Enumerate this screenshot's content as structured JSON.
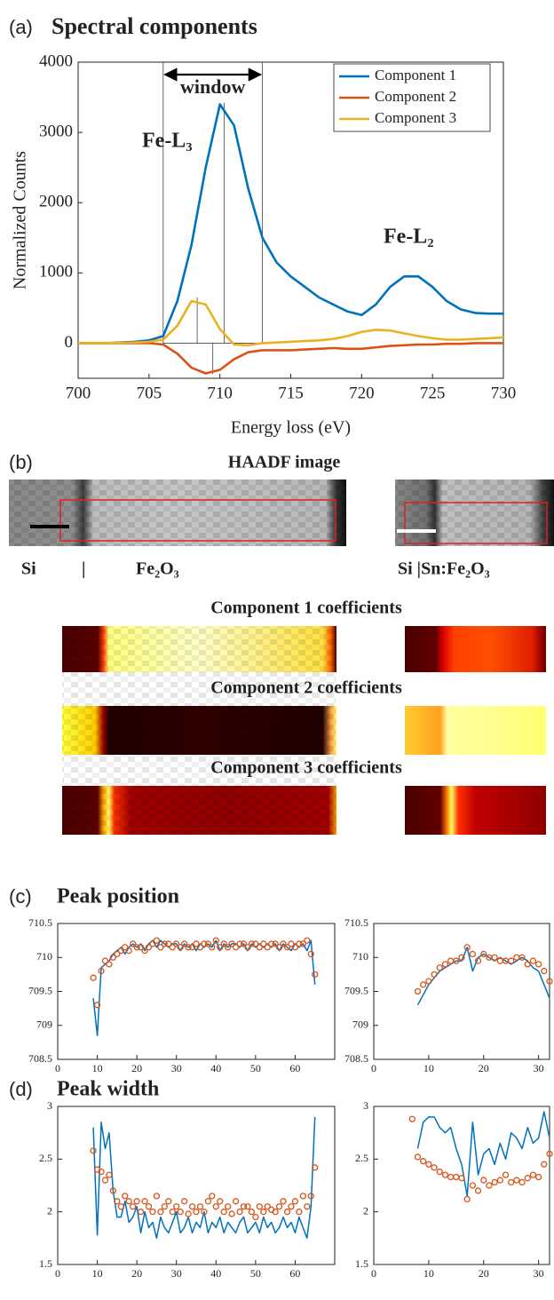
{
  "chart_data": [
    {
      "type": "line",
      "panel_label": "(a)",
      "title": "Spectral components",
      "xlabel": "Energy loss (eV)",
      "ylabel": "Normalized Counts",
      "x": [
        700,
        701,
        702,
        703,
        704,
        705,
        706,
        707,
        708,
        709,
        710,
        711,
        712,
        713,
        714,
        715,
        716,
        717,
        718,
        719,
        720,
        721,
        722,
        723,
        724,
        725,
        726,
        727,
        728,
        729,
        730
      ],
      "series": [
        {
          "name": "Component 1",
          "color": "#0072bd",
          "values": [
            0,
            0,
            0,
            10,
            20,
            40,
            100,
            600,
            1400,
            2500,
            3400,
            3100,
            2200,
            1500,
            1150,
            950,
            800,
            650,
            550,
            450,
            400,
            550,
            800,
            950,
            950,
            800,
            600,
            480,
            430,
            420,
            420
          ]
        },
        {
          "name": "Component 2",
          "color": "#d95319",
          "values": [
            0,
            0,
            0,
            0,
            0,
            0,
            -20,
            -150,
            -350,
            -430,
            -380,
            -230,
            -130,
            -100,
            -100,
            -100,
            -90,
            -80,
            -70,
            -80,
            -80,
            -60,
            -40,
            -30,
            -20,
            -20,
            -10,
            -10,
            0,
            0,
            0
          ]
        },
        {
          "name": "Component 3",
          "color": "#edb120",
          "values": [
            0,
            0,
            0,
            5,
            10,
            20,
            50,
            250,
            600,
            550,
            200,
            -20,
            -30,
            0,
            10,
            20,
            30,
            40,
            60,
            100,
            160,
            190,
            180,
            140,
            100,
            70,
            50,
            50,
            60,
            70,
            80
          ]
        }
      ],
      "xlim": [
        700,
        730
      ],
      "ylim": [
        -500,
        4000
      ],
      "xticks": [
        700,
        705,
        710,
        715,
        720,
        725,
        730
      ],
      "yticks": [
        0,
        1000,
        2000,
        3000,
        4000
      ],
      "legend": "upper right",
      "window": {
        "label": "window",
        "range": [
          706,
          713
        ]
      },
      "peak_markers": [
        {
          "x": 710.3,
          "y": 3420
        },
        {
          "x": 708.4,
          "y": 650
        },
        {
          "x": 709.5,
          "y": -440
        }
      ],
      "annotations": [
        "Fe-L₃",
        "Fe-L₂"
      ]
    },
    {
      "type": "line",
      "panel_label": "(c)",
      "title": "Peak position",
      "x": [
        9,
        10,
        11,
        12,
        13,
        14,
        15,
        16,
        17,
        18,
        19,
        20,
        21,
        22,
        23,
        24,
        25,
        26,
        27,
        28,
        29,
        30,
        31,
        32,
        33,
        34,
        35,
        36,
        37,
        38,
        39,
        40,
        41,
        42,
        43,
        44,
        45,
        46,
        47,
        48,
        49,
        50,
        51,
        52,
        53,
        54,
        55,
        56,
        57,
        58,
        59,
        60,
        61,
        62,
        63,
        64,
        65
      ],
      "series": [
        {
          "color": "#0072bd",
          "marker": "none",
          "values": [
            709.4,
            708.85,
            709.85,
            709.9,
            709.95,
            710.05,
            710.1,
            710.15,
            710.05,
            710.15,
            710.2,
            710.15,
            710.2,
            710.1,
            710.2,
            710.25,
            710.15,
            710.25,
            710.2,
            710.15,
            710.2,
            710.2,
            710.1,
            710.2,
            710.15,
            710.2,
            710.1,
            710.2,
            710.15,
            710.2,
            710.15,
            710.25,
            710.1,
            710.2,
            710.15,
            710.2,
            710.2,
            710.15,
            710.2,
            710.1,
            710.2,
            710.15,
            710.2,
            710.15,
            710.2,
            710.15,
            710.2,
            710.1,
            710.2,
            710.15,
            710.1,
            710.2,
            710.15,
            710.2,
            710.1,
            710.25,
            709.6
          ]
        },
        {
          "color": "#d95319",
          "marker": "circle",
          "values": [
            709.7,
            709.3,
            709.8,
            709.95,
            709.9,
            710.0,
            710.05,
            710.1,
            710.15,
            710.1,
            710.2,
            710.15,
            710.15,
            710.1,
            710.15,
            710.2,
            710.25,
            710.15,
            710.2,
            710.2,
            710.15,
            710.2,
            710.15,
            710.2,
            710.15,
            710.15,
            710.2,
            710.15,
            710.2,
            710.2,
            710.15,
            710.25,
            710.15,
            710.2,
            710.15,
            710.2,
            710.15,
            710.2,
            710.2,
            710.15,
            710.2,
            710.2,
            710.15,
            710.2,
            710.15,
            710.2,
            710.2,
            710.15,
            710.2,
            710.15,
            710.2,
            710.15,
            710.2,
            710.2,
            710.25,
            710.05,
            709.75
          ]
        }
      ],
      "xlim": [
        0,
        70
      ],
      "ylim": [
        708.5,
        710.5
      ],
      "xticks": [
        0,
        10,
        20,
        30,
        40,
        50,
        60
      ],
      "yticks": [
        708.5,
        709,
        709.5,
        710,
        710.5
      ]
    },
    {
      "type": "line",
      "x": [
        8,
        9,
        10,
        11,
        12,
        13,
        14,
        15,
        16,
        17,
        18,
        19,
        20,
        21,
        22,
        23,
        24,
        25,
        26,
        27,
        28,
        29,
        30,
        31,
        32
      ],
      "series": [
        {
          "color": "#0072bd",
          "marker": "none",
          "values": [
            709.3,
            709.45,
            709.6,
            709.7,
            709.8,
            709.85,
            709.9,
            709.95,
            709.95,
            710.15,
            709.8,
            710.0,
            710.05,
            710.0,
            709.95,
            710.0,
            709.95,
            709.9,
            709.95,
            710.0,
            709.95,
            709.85,
            709.8,
            709.6,
            709.4
          ]
        },
        {
          "color": "#d95319",
          "marker": "circle",
          "values": [
            709.5,
            709.6,
            709.65,
            709.75,
            709.85,
            709.9,
            709.95,
            709.95,
            710.0,
            710.15,
            710.05,
            709.95,
            710.05,
            710.0,
            710.0,
            709.95,
            709.95,
            709.95,
            710.0,
            710.0,
            709.9,
            709.95,
            709.9,
            709.8,
            709.65
          ]
        }
      ],
      "xlim": [
        0,
        32
      ],
      "ylim": [
        708.5,
        710.5
      ],
      "xticks": [
        0,
        10,
        20,
        30
      ],
      "yticks": [
        708.5,
        709,
        709.5,
        710,
        710.5
      ]
    },
    {
      "type": "line",
      "panel_label": "(d)",
      "title": "Peak width",
      "x": [
        9,
        10,
        11,
        12,
        13,
        14,
        15,
        16,
        17,
        18,
        19,
        20,
        21,
        22,
        23,
        24,
        25,
        26,
        27,
        28,
        29,
        30,
        31,
        32,
        33,
        34,
        35,
        36,
        37,
        38,
        39,
        40,
        41,
        42,
        43,
        44,
        45,
        46,
        47,
        48,
        49,
        50,
        51,
        52,
        53,
        54,
        55,
        56,
        57,
        58,
        59,
        60,
        61,
        62,
        63,
        64,
        65
      ],
      "series": [
        {
          "color": "#0072bd",
          "marker": "none",
          "values": [
            2.8,
            1.78,
            2.85,
            2.6,
            2.75,
            2.2,
            1.95,
            1.95,
            2.1,
            1.9,
            1.95,
            2.05,
            1.8,
            2.0,
            1.85,
            1.9,
            1.75,
            1.95,
            1.85,
            1.8,
            1.9,
            2.0,
            1.8,
            1.85,
            1.95,
            1.8,
            1.9,
            1.85,
            2.0,
            1.8,
            1.9,
            1.85,
            1.95,
            1.8,
            1.9,
            1.85,
            1.8,
            1.9,
            1.95,
            1.8,
            1.85,
            1.9,
            1.8,
            1.95,
            1.85,
            1.9,
            1.8,
            1.85,
            1.95,
            1.85,
            1.9,
            1.8,
            1.95,
            1.85,
            1.75,
            2.05,
            2.9
          ]
        },
        {
          "color": "#d95319",
          "marker": "circle",
          "values": [
            2.58,
            2.4,
            2.38,
            2.3,
            2.35,
            2.2,
            2.1,
            2.05,
            2.15,
            2.1,
            2.05,
            2.1,
            2.0,
            2.1,
            2.05,
            2.0,
            2.15,
            2.0,
            2.05,
            2.1,
            2.0,
            2.05,
            2.0,
            2.1,
            1.98,
            2.05,
            2.0,
            2.05,
            2.0,
            2.1,
            2.15,
            2.05,
            2.1,
            2.0,
            2.05,
            1.98,
            2.1,
            2.0,
            2.05,
            2.05,
            2.0,
            1.95,
            2.05,
            2.0,
            2.05,
            2.02,
            2.0,
            2.05,
            2.1,
            2.0,
            2.05,
            2.1,
            2.0,
            2.15,
            2.05,
            2.15,
            2.42
          ]
        }
      ],
      "xlim": [
        0,
        70
      ],
      "ylim": [
        1.5,
        3
      ],
      "xticks": [
        0,
        10,
        20,
        30,
        40,
        50,
        60
      ],
      "yticks": [
        1.5,
        2,
        2.5,
        3
      ]
    },
    {
      "type": "line",
      "x": [
        7,
        8,
        9,
        10,
        11,
        12,
        13,
        14,
        15,
        16,
        17,
        18,
        19,
        20,
        21,
        22,
        23,
        24,
        25,
        26,
        27,
        28,
        29,
        30,
        31,
        32
      ],
      "series": [
        {
          "color": "#0072bd",
          "marker": "none",
          "values": [
            null,
            2.6,
            2.85,
            2.9,
            2.9,
            2.8,
            2.75,
            2.8,
            2.6,
            2.45,
            2.15,
            2.85,
            2.35,
            2.55,
            2.6,
            2.45,
            2.65,
            2.5,
            2.75,
            2.7,
            2.6,
            2.8,
            2.65,
            2.7,
            2.95,
            2.7
          ]
        },
        {
          "color": "#d95319",
          "marker": "circle",
          "values": [
            2.88,
            2.52,
            2.48,
            2.45,
            2.42,
            2.38,
            2.35,
            2.33,
            2.33,
            2.32,
            2.12,
            2.25,
            2.2,
            2.3,
            2.25,
            2.28,
            2.3,
            2.35,
            2.28,
            2.3,
            2.28,
            2.32,
            2.35,
            2.33,
            2.45,
            2.55
          ]
        }
      ],
      "xlim": [
        0,
        32
      ],
      "ylim": [
        1.5,
        3
      ],
      "xticks": [
        0,
        10,
        20,
        30
      ],
      "yticks": [
        1.5,
        2,
        2.5,
        3
      ]
    }
  ],
  "images": {
    "panel_label": "(b)",
    "title": "HAADF image",
    "left_labels": [
      "Si",
      "|",
      "Fe₂O₃"
    ],
    "right_label": "Si |Sn:Fe₂O₃",
    "maps": [
      "Component 1 coefficients",
      "Component 2 coefficients",
      "Component 3 coefficients"
    ]
  }
}
